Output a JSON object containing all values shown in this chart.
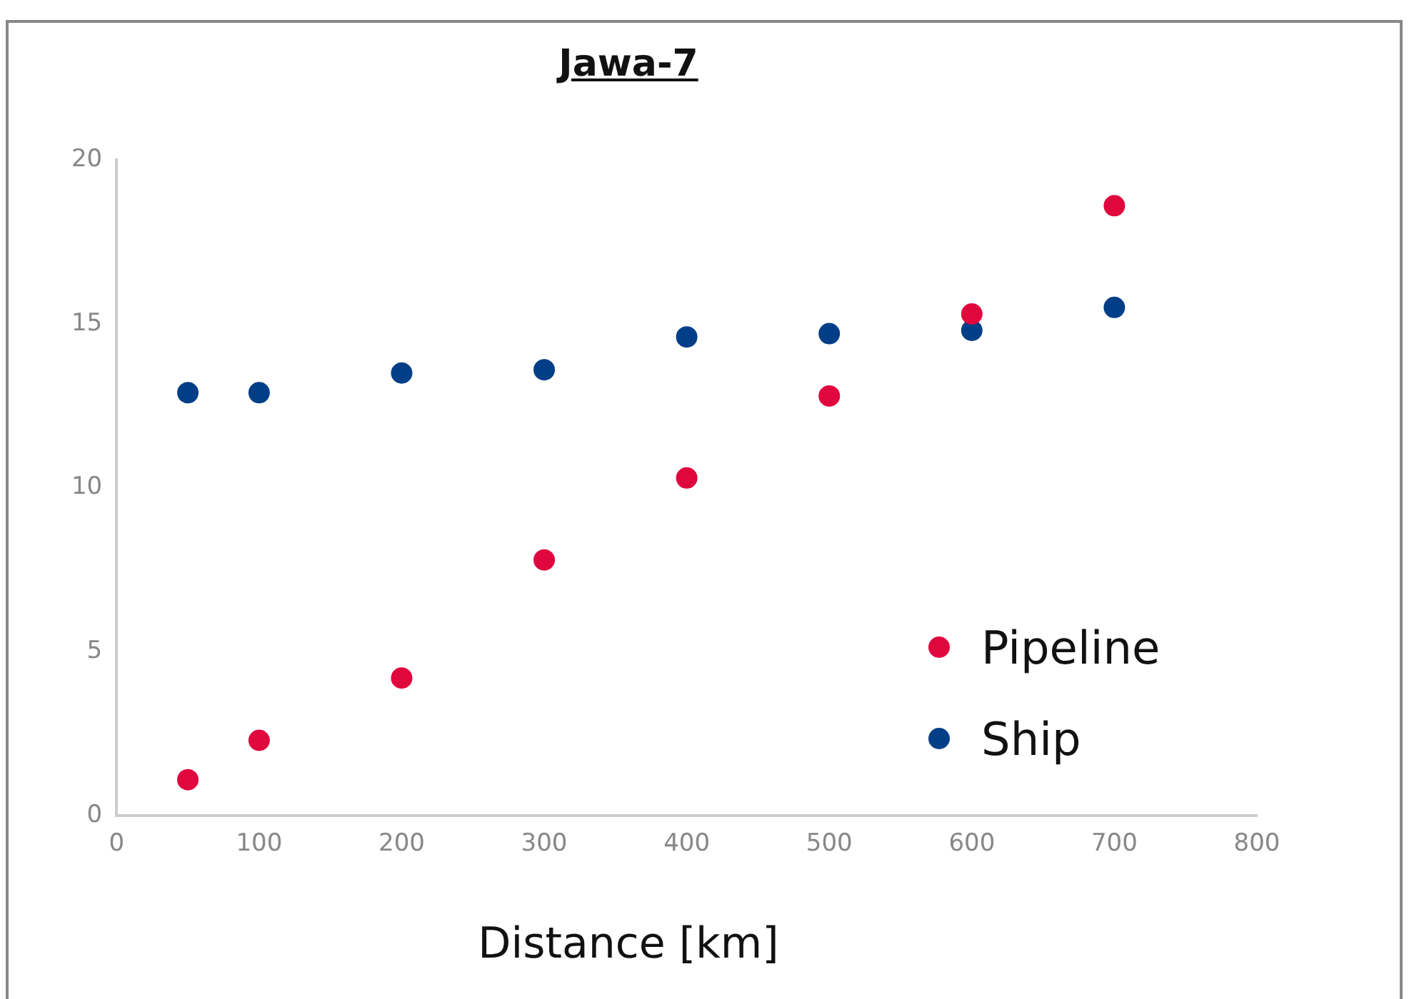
{
  "chart_data": {
    "type": "scatter",
    "title": "Jawa-7",
    "xlabel": "Distance [km]",
    "x": [
      50,
      100,
      200,
      300,
      400,
      500,
      600,
      700
    ],
    "series": [
      {
        "name": "Pipeline",
        "color": "#e0073e",
        "values": [
          1.1,
          2.3,
          4.2,
          7.8,
          10.3,
          12.8,
          15.3,
          18.6
        ]
      },
      {
        "name": "Ship",
        "color": "#003f87",
        "values": [
          12.9,
          12.9,
          13.5,
          13.6,
          14.6,
          14.7,
          14.8,
          15.5
        ]
      }
    ],
    "xlim": [
      0,
      800
    ],
    "xticks": [
      0,
      100,
      200,
      300,
      400,
      500,
      600,
      700,
      800
    ],
    "ylim": [
      0,
      20
    ],
    "yticks": [
      0,
      5,
      10,
      15,
      20
    ],
    "grid": false,
    "legend": "bottom right",
    "marker": "circle"
  }
}
